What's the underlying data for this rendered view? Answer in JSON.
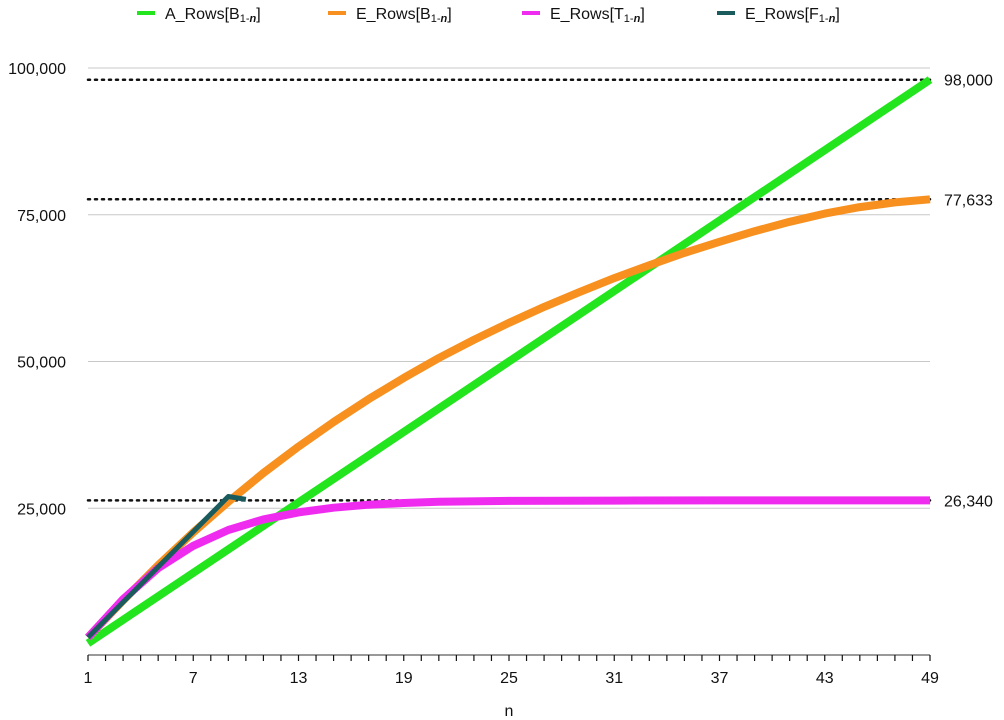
{
  "chart_data": {
    "type": "line",
    "title": "",
    "xlabel": "n",
    "ylabel": "",
    "xlim": [
      1,
      49
    ],
    "ylim": [
      0,
      100000
    ],
    "x_ticks": [
      1,
      7,
      13,
      19,
      25,
      31,
      37,
      43,
      49
    ],
    "x_tick_labels": [
      "1",
      "7",
      "13",
      "19",
      "25",
      "31",
      "37",
      "43",
      "49"
    ],
    "y_ticks": [
      25000,
      50000,
      75000,
      100000
    ],
    "y_tick_labels": [
      "25,000",
      "50,000",
      "75,000",
      "100,000"
    ],
    "grid": true,
    "legend_position": "top",
    "series": [
      {
        "name": "A_Rows[B1-n]",
        "label_main": "A_Rows[B",
        "label_sub": "1-",
        "label_n": "n",
        "label_close": "]",
        "color": "#22e51e",
        "x": [
          1,
          49
        ],
        "y": [
          2000,
          98000
        ]
      },
      {
        "name": "E_Rows[B1-n]",
        "label_main": "E_Rows[B",
        "label_sub": "1-",
        "label_n": "n",
        "label_close": "]",
        "color": "#f7901e",
        "x": [
          1,
          3,
          5,
          7,
          9,
          11,
          13,
          15,
          17,
          19,
          21,
          23,
          25,
          27,
          29,
          31,
          33,
          35,
          37,
          39,
          41,
          43,
          45,
          47,
          49
        ],
        "y": [
          3000,
          9300,
          15300,
          20900,
          26100,
          31000,
          35500,
          39700,
          43600,
          47200,
          50600,
          53700,
          56600,
          59300,
          61800,
          64200,
          66400,
          68500,
          70400,
          72200,
          73800,
          75200,
          76300,
          77100,
          77633
        ]
      },
      {
        "name": "E_Rows[T1-n]",
        "label_main": "E_Rows[T",
        "label_sub": "1-",
        "label_n": "n",
        "label_close": "]",
        "color": "#f02bf0",
        "x": [
          1,
          3,
          5,
          7,
          9,
          11,
          13,
          15,
          17,
          19,
          21,
          25,
          31,
          37,
          43,
          49
        ],
        "y": [
          3000,
          9500,
          14800,
          18600,
          21300,
          23100,
          24300,
          25100,
          25600,
          25900,
          26100,
          26250,
          26310,
          26330,
          26338,
          26340
        ]
      },
      {
        "name": "E_Rows[F1-n]",
        "label_main": "E_Rows[F",
        "label_sub": "1-",
        "label_n": "n",
        "label_close": "]",
        "color": "#1a5c5e",
        "x": [
          1,
          9,
          10
        ],
        "y": [
          3000,
          27000,
          26500
        ]
      }
    ],
    "reference_lines": [
      {
        "value": 98000,
        "label": "98,000"
      },
      {
        "value": 77633,
        "label": "77,633"
      },
      {
        "value": 26340,
        "label": "26,340"
      }
    ]
  }
}
